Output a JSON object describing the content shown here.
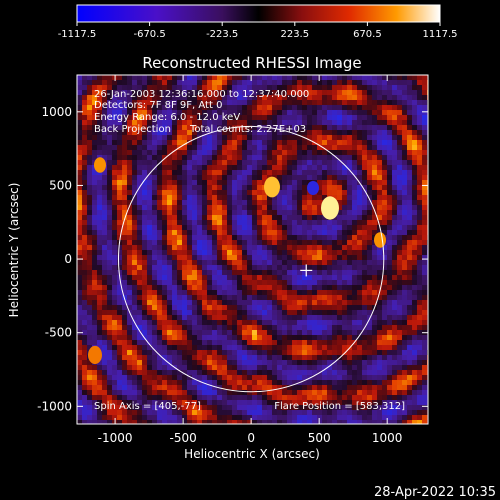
{
  "colorbar": {
    "ticks": [
      "-1117.5",
      "-670.5",
      "-223.5",
      "223.5",
      "670.5",
      "1117.5"
    ],
    "values": [
      -1117.5,
      -670.5,
      -223.5,
      223.5,
      670.5,
      1117.5
    ]
  },
  "title": "Reconstructed RHESSI Image",
  "info_lines": [
    "26-Jan-2003 12:36:16.000 to 12:37:40.000",
    "Detectors: 7F 8F 9F, Att 0",
    "Energy Range: 6.0 - 12.0 keV",
    "Back Projection      Total counts: 2.27E+03"
  ],
  "spin_axis": "Spin Axis = [405,-77]",
  "flare_position": "Flare Position = [583,312]",
  "x_axis_label": "Heliocentric X (arcsec)",
  "y_axis_label": "Heliocentric Y (arcsec)",
  "x_ticks": [
    "-1000",
    "-500",
    "0",
    "500",
    "1000"
  ],
  "y_ticks": [
    "1000",
    "500",
    "0",
    "-500",
    "-1000"
  ],
  "timestamp": "28-Apr-2022 10:35",
  "colors": {
    "background": "#000000",
    "text": "#ffffff",
    "limb": "#ffffff"
  },
  "map": {
    "x_range": [
      -1280,
      1300
    ],
    "y_range": [
      -1120,
      1250
    ],
    "x_tick_values": [
      -1000,
      -500,
      0,
      500,
      1000
    ],
    "y_tick_values": [
      1000,
      500,
      0,
      -500,
      -1000
    ],
    "solar_radius_arcsec": 975,
    "sun_center": [
      0,
      0
    ],
    "spin_axis_marker": [
      405,
      -77
    ],
    "colormap": "blue-purple-red-yellow-white",
    "intensity_range": [
      -1117.5,
      1117.5
    ]
  },
  "chart_data": {
    "type": "heatmap",
    "title": "Reconstructed RHESSI Image",
    "xlabel": "Heliocentric X (arcsec)",
    "ylabel": "Heliocentric Y (arcsec)",
    "xlim": [
      -1280,
      1300
    ],
    "ylim": [
      -1120,
      1250
    ],
    "colorbar_range": [
      -1117.5,
      1117.5
    ]
  }
}
